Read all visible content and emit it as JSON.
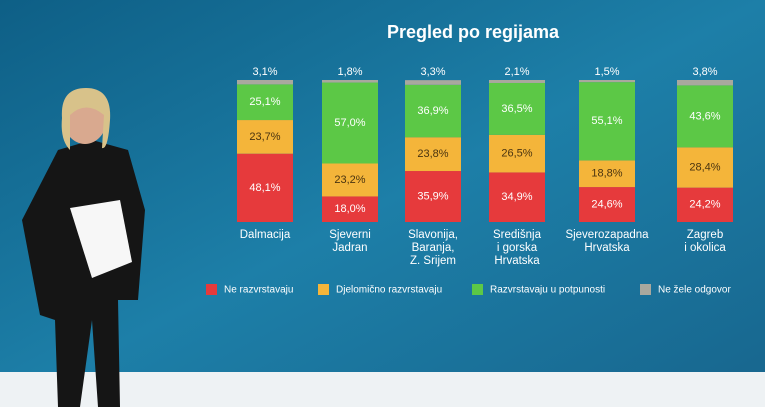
{
  "chart_data": {
    "type": "stacked_bar",
    "title": "Pregled po regijama",
    "categories": [
      "Dalmacija",
      "Sjeverni\nJadran",
      "Slavonija,\nBaranja,\nZ. Srijem",
      "Središnja\ni gorska\nHrvatska",
      "Sjeverozapadna\nHrvatska",
      "Zagreb\ni okolica"
    ],
    "ylim": [
      0,
      100
    ],
    "legend": "bottom",
    "series": [
      {
        "name": "Ne razvrstavaju",
        "color": "#e63a3c",
        "values": [
          48.1,
          18.0,
          35.9,
          34.9,
          24.6,
          24.2
        ],
        "value_labels": [
          "48,1%",
          "18,0%",
          "35,9%",
          "34,9%",
          "24,6%",
          "24,2%"
        ]
      },
      {
        "name": "Djelomično razvrstavaju",
        "color": "#f4b53a",
        "values": [
          23.7,
          23.2,
          23.8,
          26.5,
          18.8,
          28.4
        ],
        "value_labels": [
          "23,7%",
          "23,2%",
          "23,8%",
          "26,5%",
          "18,8%",
          "28,4%"
        ]
      },
      {
        "name": "Razvrstavaju u potpunosti",
        "color": "#5cc846",
        "values": [
          25.1,
          57.0,
          36.9,
          36.5,
          55.1,
          43.6
        ],
        "value_labels": [
          "25,1%",
          "57,0%",
          "36,9%",
          "36,5%",
          "55,1%",
          "43,6%"
        ]
      },
      {
        "name": "Ne žele odgovor",
        "color": "#a9a89e",
        "values": [
          3.1,
          1.8,
          3.3,
          2.1,
          1.5,
          3.8
        ],
        "value_labels": [
          "3,1%",
          "1,8%",
          "3,3%",
          "2,1%",
          "1,5%",
          "3,8%"
        ]
      }
    ]
  }
}
